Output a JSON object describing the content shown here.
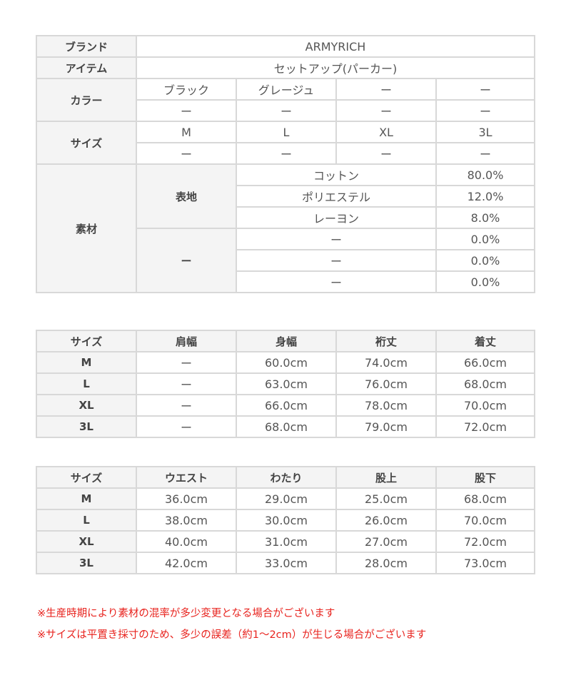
{
  "spec": {
    "brand": {
      "label": "ブランド",
      "value": "ARMYRICH"
    },
    "item": {
      "label": "アイテム",
      "value": "セットアップ(パーカー)"
    },
    "color": {
      "label": "カラー",
      "values": [
        "ブラック",
        "グレージュ",
        "ー",
        "ー",
        "ー",
        "ー",
        "ー",
        "ー"
      ]
    },
    "size": {
      "label": "サイズ",
      "values": [
        "M",
        "L",
        "XL",
        "3L",
        "ー",
        "ー",
        "ー",
        "ー"
      ]
    },
    "material": {
      "label": "素材",
      "groups": [
        {
          "label": "表地",
          "rows": [
            {
              "name": "コットン",
              "pct": "80.0%"
            },
            {
              "name": "ポリエステル",
              "pct": "12.0%"
            },
            {
              "name": "レーヨン",
              "pct": "8.0%"
            }
          ]
        },
        {
          "label": "ー",
          "rows": [
            {
              "name": "ー",
              "pct": "0.0%"
            },
            {
              "name": "ー",
              "pct": "0.0%"
            },
            {
              "name": "ー",
              "pct": "0.0%"
            }
          ]
        }
      ]
    }
  },
  "top_sizes": {
    "headers": [
      "サイズ",
      "肩幅",
      "身幅",
      "裄丈",
      "着丈"
    ],
    "rows": [
      [
        "M",
        "ー",
        "60.0cm",
        "74.0cm",
        "66.0cm"
      ],
      [
        "L",
        "ー",
        "63.0cm",
        "76.0cm",
        "68.0cm"
      ],
      [
        "XL",
        "ー",
        "66.0cm",
        "78.0cm",
        "70.0cm"
      ],
      [
        "3L",
        "ー",
        "68.0cm",
        "79.0cm",
        "72.0cm"
      ]
    ]
  },
  "bottom_sizes": {
    "headers": [
      "サイズ",
      "ウエスト",
      "わたり",
      "股上",
      "股下"
    ],
    "rows": [
      [
        "M",
        "36.0cm",
        "29.0cm",
        "25.0cm",
        "68.0cm"
      ],
      [
        "L",
        "38.0cm",
        "30.0cm",
        "26.0cm",
        "70.0cm"
      ],
      [
        "XL",
        "40.0cm",
        "31.0cm",
        "27.0cm",
        "72.0cm"
      ],
      [
        "3L",
        "42.0cm",
        "33.0cm",
        "28.0cm",
        "73.0cm"
      ]
    ]
  },
  "notes": [
    "※生産時期により素材の混率が多少変更となる場合がございます",
    "※サイズは平置き採寸のため、多少の誤差（約1～2cm）が生じる場合がございます"
  ]
}
